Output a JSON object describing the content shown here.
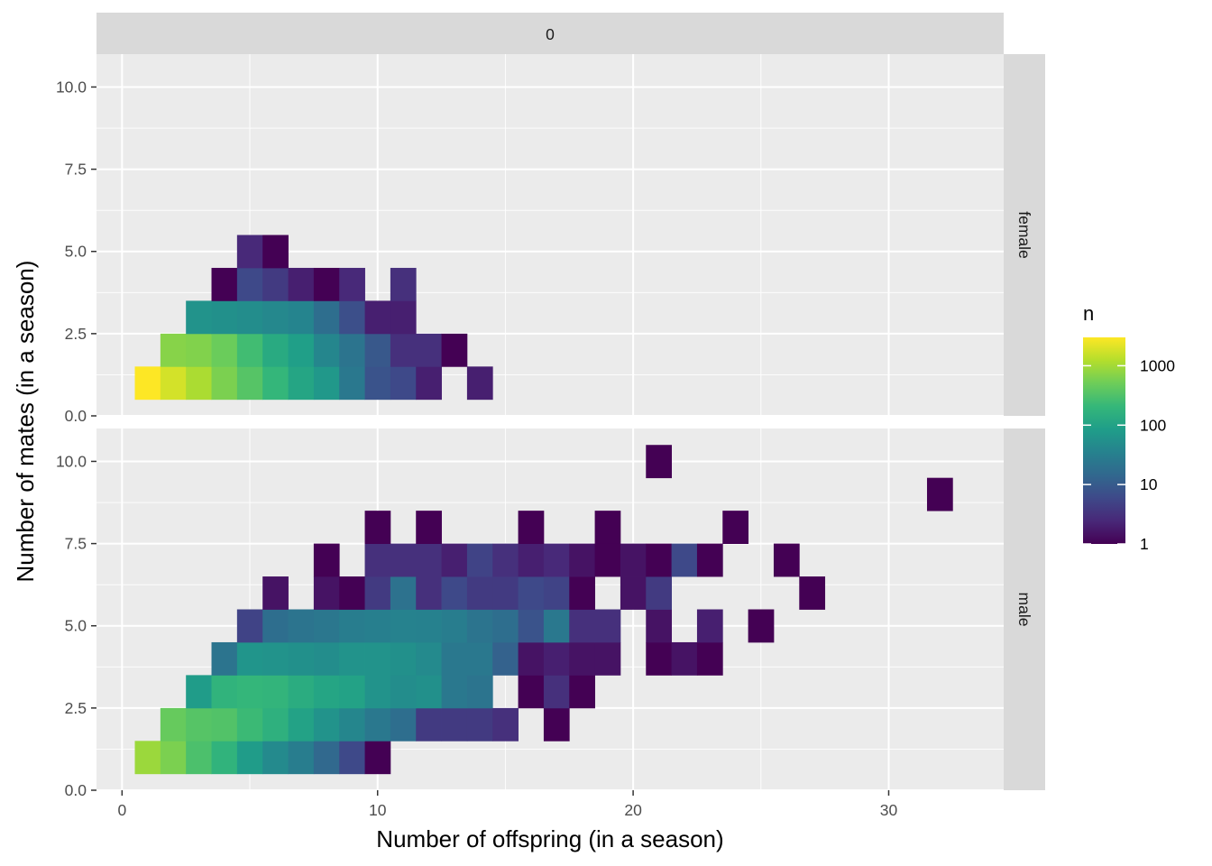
{
  "chart_data": {
    "type": "heatmap",
    "title": "",
    "xlabel": "Number of offspring (in a season)",
    "ylabel": "Number of mates (in a season)",
    "facet_col_strip": "0",
    "xlim": [
      -1,
      34.5
    ],
    "ylim": [
      0,
      11
    ],
    "x_ticks": [
      0,
      10,
      20,
      30
    ],
    "y_ticks": [
      0,
      2.5,
      5,
      7.5,
      10
    ],
    "y_tick_labels": [
      "0.0",
      "2.5",
      "5.0",
      "7.5",
      "10.0"
    ],
    "bin_width": 1,
    "bin_height": 1,
    "color_scale": {
      "name": "n",
      "scale": "log10",
      "min": 1,
      "max": 3000,
      "breaks": [
        1,
        10,
        100,
        1000
      ],
      "break_labels": [
        "1",
        "10",
        "100",
        "1000"
      ],
      "palette": [
        "#440154",
        "#482878",
        "#3E4989",
        "#31688E",
        "#26828E",
        "#1F9E89",
        "#35B779",
        "#6DCD59",
        "#B4DE2C",
        "#FDE725"
      ]
    },
    "panels": [
      {
        "strip": "female",
        "tiles": [
          [
            1,
            1,
            3000
          ],
          [
            2,
            1,
            1800
          ],
          [
            3,
            1,
            1100
          ],
          [
            4,
            1,
            600
          ],
          [
            5,
            1,
            350
          ],
          [
            6,
            1,
            200
          ],
          [
            7,
            1,
            110
          ],
          [
            8,
            1,
            70
          ],
          [
            9,
            1,
            25
          ],
          [
            10,
            1,
            8
          ],
          [
            11,
            1,
            6
          ],
          [
            12,
            1,
            2
          ],
          [
            14,
            1,
            2
          ],
          [
            2,
            2,
            700
          ],
          [
            3,
            2,
            650
          ],
          [
            4,
            2,
            480
          ],
          [
            5,
            2,
            250
          ],
          [
            6,
            2,
            130
          ],
          [
            7,
            2,
            90
          ],
          [
            8,
            2,
            40
          ],
          [
            9,
            2,
            22
          ],
          [
            10,
            2,
            9
          ],
          [
            11,
            2,
            3
          ],
          [
            12,
            2,
            3
          ],
          [
            13,
            2,
            1
          ],
          [
            3,
            3,
            60
          ],
          [
            4,
            3,
            55
          ],
          [
            5,
            3,
            50
          ],
          [
            6,
            3,
            42
          ],
          [
            7,
            3,
            38
          ],
          [
            8,
            3,
            18
          ],
          [
            9,
            3,
            7
          ],
          [
            10,
            3,
            2
          ],
          [
            11,
            3,
            2
          ],
          [
            4,
            4,
            1
          ],
          [
            5,
            4,
            6
          ],
          [
            6,
            4,
            4
          ],
          [
            7,
            4,
            2
          ],
          [
            8,
            4,
            1
          ],
          [
            9,
            4,
            2.5
          ],
          [
            11,
            4,
            3
          ],
          [
            5,
            5,
            2.5
          ],
          [
            6,
            5,
            1
          ]
        ]
      },
      {
        "strip": "male",
        "tiles": [
          [
            1,
            1,
            900
          ],
          [
            2,
            1,
            600
          ],
          [
            3,
            1,
            300
          ],
          [
            4,
            1,
            180
          ],
          [
            5,
            1,
            80
          ],
          [
            6,
            1,
            45
          ],
          [
            7,
            1,
            30
          ],
          [
            8,
            1,
            15
          ],
          [
            9,
            1,
            6
          ],
          [
            10,
            1,
            1
          ],
          [
            2,
            2,
            450
          ],
          [
            3,
            2,
            350
          ],
          [
            4,
            2,
            330
          ],
          [
            5,
            2,
            230
          ],
          [
            6,
            2,
            160
          ],
          [
            7,
            2,
            100
          ],
          [
            8,
            2,
            60
          ],
          [
            9,
            2,
            40
          ],
          [
            10,
            2,
            25
          ],
          [
            11,
            2,
            18
          ],
          [
            12,
            2,
            4
          ],
          [
            13,
            2,
            4
          ],
          [
            14,
            2,
            4
          ],
          [
            15,
            2,
            3
          ],
          [
            17,
            2,
            1
          ],
          [
            3,
            3,
            80
          ],
          [
            4,
            3,
            180
          ],
          [
            5,
            3,
            200
          ],
          [
            6,
            3,
            190
          ],
          [
            7,
            3,
            140
          ],
          [
            8,
            3,
            110
          ],
          [
            9,
            3,
            100
          ],
          [
            10,
            3,
            60
          ],
          [
            11,
            3,
            50
          ],
          [
            12,
            3,
            55
          ],
          [
            13,
            3,
            25
          ],
          [
            14,
            3,
            22
          ],
          [
            16,
            3,
            1
          ],
          [
            17,
            3,
            3
          ],
          [
            18,
            3,
            1
          ],
          [
            4,
            4,
            22
          ],
          [
            5,
            4,
            65
          ],
          [
            6,
            4,
            60
          ],
          [
            7,
            4,
            55
          ],
          [
            8,
            4,
            50
          ],
          [
            9,
            4,
            60
          ],
          [
            10,
            4,
            60
          ],
          [
            11,
            4,
            55
          ],
          [
            12,
            4,
            45
          ],
          [
            13,
            4,
            25
          ],
          [
            14,
            4,
            25
          ],
          [
            15,
            4,
            12
          ],
          [
            16,
            4,
            1.5
          ],
          [
            17,
            4,
            2
          ],
          [
            18,
            4,
            1.5
          ],
          [
            19,
            4,
            1.5
          ],
          [
            21,
            4,
            1
          ],
          [
            22,
            4,
            1.5
          ],
          [
            23,
            4,
            1
          ],
          [
            5,
            5,
            5
          ],
          [
            6,
            5,
            18
          ],
          [
            7,
            5,
            22
          ],
          [
            8,
            5,
            24
          ],
          [
            9,
            5,
            30
          ],
          [
            10,
            5,
            32
          ],
          [
            11,
            5,
            35
          ],
          [
            12,
            5,
            34
          ],
          [
            13,
            5,
            30
          ],
          [
            14,
            5,
            22
          ],
          [
            15,
            5,
            18
          ],
          [
            16,
            5,
            8
          ],
          [
            17,
            5,
            25
          ],
          [
            18,
            5,
            3
          ],
          [
            19,
            5,
            3
          ],
          [
            21,
            5,
            1.5
          ],
          [
            23,
            5,
            2
          ],
          [
            25,
            5,
            1
          ],
          [
            6,
            6,
            1.5
          ],
          [
            8,
            6,
            1.5
          ],
          [
            9,
            6,
            1
          ],
          [
            10,
            6,
            4
          ],
          [
            11,
            6,
            20
          ],
          [
            12,
            6,
            3
          ],
          [
            13,
            6,
            6
          ],
          [
            14,
            6,
            4
          ],
          [
            15,
            6,
            4
          ],
          [
            16,
            6,
            6
          ],
          [
            17,
            6,
            5
          ],
          [
            18,
            6,
            1
          ],
          [
            20,
            6,
            1.5
          ],
          [
            21,
            6,
            4
          ],
          [
            27,
            6,
            1
          ],
          [
            8,
            7,
            1
          ],
          [
            10,
            7,
            3
          ],
          [
            11,
            7,
            3
          ],
          [
            12,
            7,
            3
          ],
          [
            13,
            7,
            2
          ],
          [
            14,
            7,
            5
          ],
          [
            15,
            7,
            3
          ],
          [
            16,
            7,
            2
          ],
          [
            17,
            7,
            2.5
          ],
          [
            18,
            7,
            1.5
          ],
          [
            19,
            7,
            1
          ],
          [
            20,
            7,
            1.5
          ],
          [
            21,
            7,
            1
          ],
          [
            22,
            7,
            6
          ],
          [
            23,
            7,
            1
          ],
          [
            26,
            7,
            1
          ],
          [
            10,
            8,
            1
          ],
          [
            12,
            8,
            1
          ],
          [
            16,
            8,
            1
          ],
          [
            19,
            8,
            1
          ],
          [
            24,
            8,
            1
          ],
          [
            21,
            10,
            1
          ],
          [
            32,
            9,
            1
          ]
        ]
      }
    ]
  }
}
